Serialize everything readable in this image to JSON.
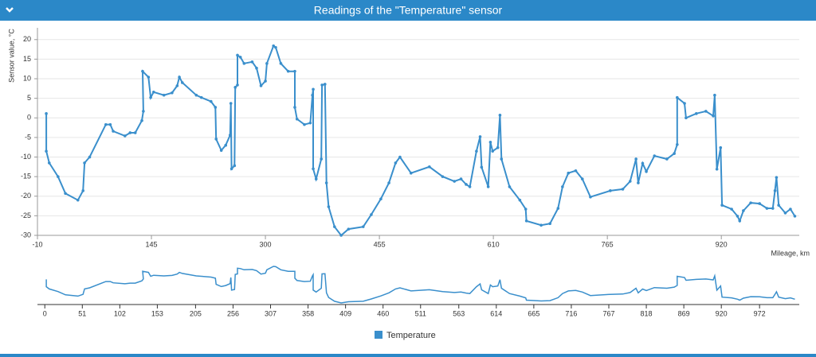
{
  "chart_data": {
    "type": "line",
    "title": "Readings of the \"Temperature\" sensor",
    "ylabel": "Sensor value, °C",
    "xlabel": "Mileage, km",
    "xlim": [
      -10,
      1026
    ],
    "ylim": [
      -30,
      23
    ],
    "xticks": [
      -10,
      145,
      300,
      455,
      610,
      765,
      920
    ],
    "yticks": [
      -30,
      -25,
      -20,
      -15,
      -10,
      -5,
      0,
      5,
      10,
      15,
      20
    ],
    "navigator_xticks": [
      0,
      51,
      102,
      153,
      205,
      256,
      307,
      358,
      409,
      460,
      511,
      563,
      614,
      665,
      716,
      767,
      818,
      869,
      920,
      972
    ],
    "grid": true,
    "series": [
      {
        "name": "Temperature",
        "color": "#3a8fcc",
        "x": [
          2,
          2,
          6,
          18,
          28,
          45,
          52,
          54,
          61,
          83,
          89,
          93,
          109,
          116,
          123,
          132,
          134,
          133,
          141,
          144,
          148,
          162,
          173,
          180,
          183,
          187,
          206,
          213,
          226,
          232,
          233,
          240,
          246,
          252,
          253,
          254,
          258,
          259,
          262,
          262,
          266,
          271,
          282,
          288,
          294,
          300,
          302,
          311,
          314,
          321,
          331,
          340,
          340,
          343,
          353,
          361,
          364,
          365,
          365,
          369,
          376,
          377,
          381,
          383,
          386,
          394,
          403,
          413,
          433,
          444,
          457,
          468,
          477,
          483,
          498,
          523,
          541,
          557,
          566,
          573,
          578,
          587,
          592,
          594,
          603,
          606,
          609,
          616,
          619,
          621,
          632,
          646,
          654,
          655,
          675,
          687,
          698,
          704,
          712,
          722,
          731,
          742,
          769,
          786,
          796,
          804,
          807,
          813,
          818,
          829,
          846,
          856,
          860,
          860,
          870,
          872,
          886,
          899,
          909,
          911,
          914,
          919,
          921,
          934,
          942,
          945,
          950,
          960,
          972,
          982,
          990,
          993,
          995,
          998,
          1007,
          1014,
          1020
        ],
        "values": [
          1.1,
          -8.5,
          -11.5,
          -15,
          -19.3,
          -21,
          -18.6,
          -11.5,
          -10,
          -1.7,
          -1.7,
          -3.4,
          -4.6,
          -3.8,
          -3.8,
          -0.7,
          1.7,
          11.9,
          10.4,
          5.2,
          6.6,
          5.8,
          6.4,
          8.2,
          10.4,
          9,
          5.8,
          5.2,
          4.2,
          2.7,
          -5.4,
          -8.3,
          -7,
          -4.4,
          3.7,
          -13,
          -12.2,
          7.8,
          8.4,
          16,
          15.5,
          13.9,
          14.3,
          12.7,
          8.2,
          9.4,
          13.9,
          18.4,
          18,
          13.9,
          11.9,
          11.9,
          2.7,
          -0.3,
          -1.7,
          -1.3,
          5.8,
          7.3,
          -13,
          -15.6,
          -10.5,
          8.4,
          8.6,
          -16.6,
          -22.7,
          -27.8,
          -30,
          -28.4,
          -27.8,
          -24.7,
          -20.7,
          -16.6,
          -11.5,
          -10,
          -14.1,
          -12.5,
          -15,
          -16.2,
          -15.6,
          -17,
          -17.6,
          -8.5,
          -4.8,
          -12.6,
          -17.6,
          -6.2,
          -8.5,
          -7.6,
          0.7,
          -10.5,
          -17.6,
          -21,
          -23.3,
          -26.3,
          -27.4,
          -27,
          -23.1,
          -17.6,
          -14.1,
          -13.5,
          -15.6,
          -20.2,
          -18.6,
          -18.2,
          -16.2,
          -10.5,
          -16.6,
          -11.6,
          -13.7,
          -9.7,
          -10.5,
          -9.1,
          -6.8,
          5.2,
          3.7,
          0,
          1.1,
          1.7,
          0.5,
          5.8,
          -13.1,
          -7.6,
          -22.3,
          -23.3,
          -25.1,
          -26.3,
          -23.7,
          -21.7,
          -21.9,
          -23.1,
          -23.1,
          -18.6,
          -15.2,
          -22.3,
          -24.3,
          -23.3,
          -25.1
        ]
      }
    ]
  }
}
